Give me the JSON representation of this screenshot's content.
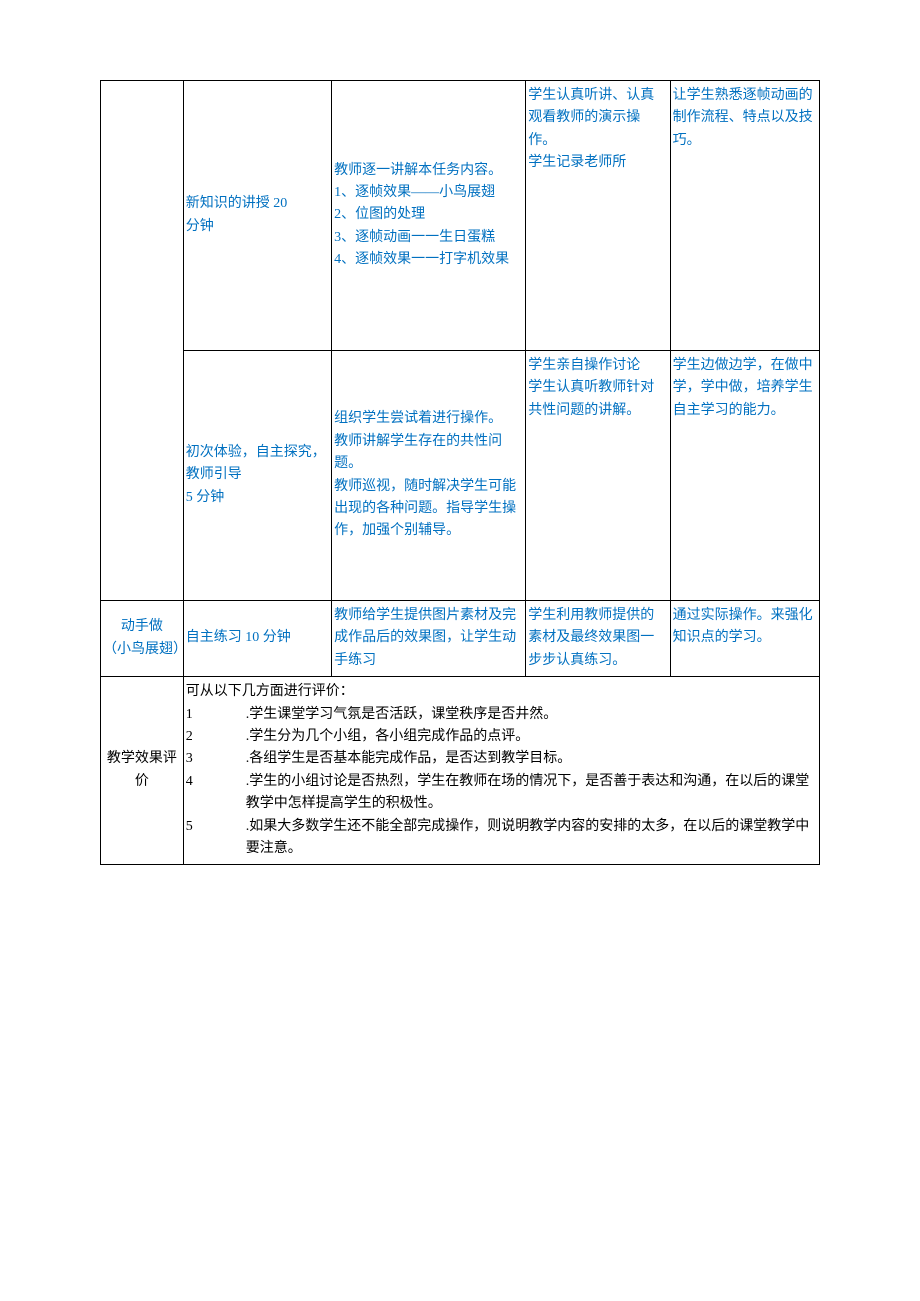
{
  "table": {
    "row1": {
      "col2": "新知识的讲授 20\n分钟",
      "col3": "教师逐一讲解本任务内容。\n1、逐帧效果——小鸟展翅\n2、位图的处理\n3、逐帧动画一一生日蛋糕\n4、逐帧效果一一打字机效果",
      "col4": "学生认真听讲、认真观看教师的演示操作。\n学生记录老师所",
      "col5": "让学生熟悉逐帧动画的制作流程、特点以及技巧。"
    },
    "row2": {
      "col2": "初次体验，自主探究，教师引导\n5 分钟",
      "col3": "组织学生尝试着进行操作。\n教师讲解学生存在的共性问题。\n教师巡视，随时解决学生可能出现的各种问题。指导学生操作，加强个别辅导。",
      "col4": "学生亲自操作讨论\n学生认真听教师针对共性问题的讲解。",
      "col5": "学生边做边学，在做中学，学中做，培养学生自主学习的能力。"
    },
    "row3": {
      "col1": "动手做\n（小鸟展翅）",
      "col2": "自主练习 10 分钟",
      "col3": "教师给学生提供图片素材及完成作品后的效果图，让学生动手练习",
      "col4": "学生利用教师提供的素材及最终效果图一步步认真练习。",
      "col5": "通过实际操作。来强化知识点的学习。"
    },
    "row4": {
      "col1": "教学效果评价",
      "content_intro": "可从以下几方面进行评价：",
      "items": [
        {
          "n": "1",
          "t": ".学生课堂学习气氛是否活跃，课堂秩序是否井然。"
        },
        {
          "n": "2",
          "t": ".学生分为几个小组，各小组完成作品的点评。"
        },
        {
          "n": "3",
          "t": ".各组学生是否基本能完成作品，是否达到教学目标。"
        },
        {
          "n": "4",
          "t": ".学生的小组讨论是否热烈，学生在教师在场的情况下，是否善于表达和沟通，在以后的课堂教学中怎样提高学生的积极性。"
        },
        {
          "n": "5",
          "t": ".如果大多数学生还不能全部完成操作，则说明教学内容的安排的太多，在以后的课堂教学中要注意。"
        }
      ]
    }
  },
  "colors": {
    "text_blue": "#0070c0",
    "text_black": "#000000",
    "border": "#000000",
    "background": "#ffffff"
  }
}
